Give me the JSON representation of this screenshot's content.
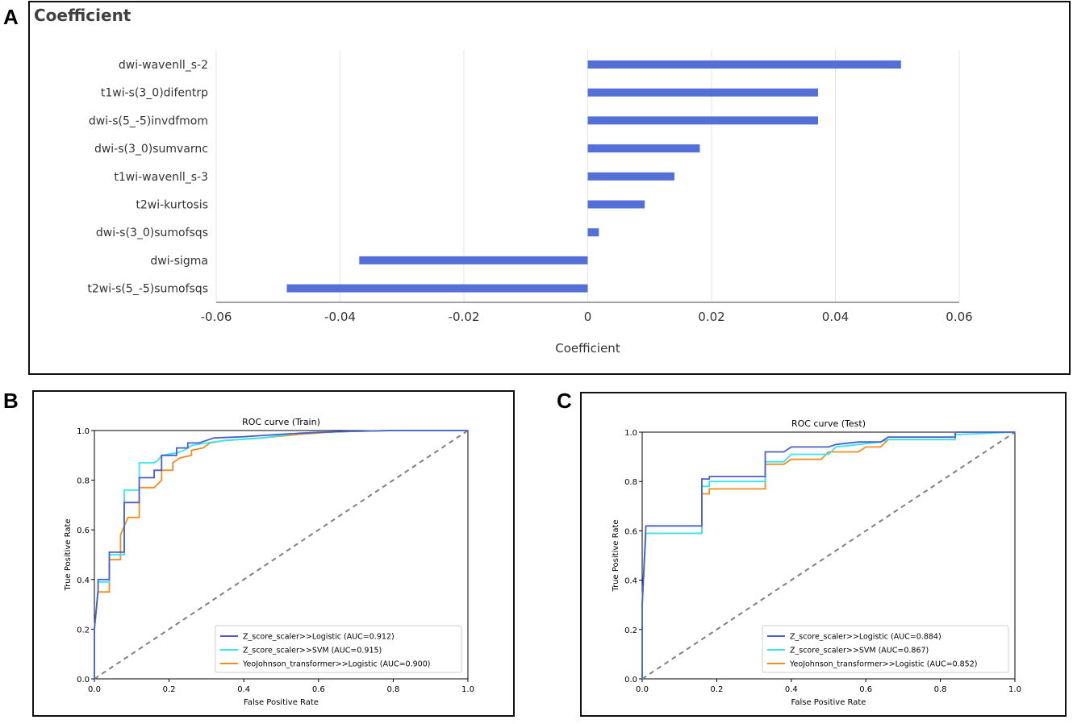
{
  "panels": {
    "a": "A",
    "b": "B",
    "c": "C"
  },
  "coef_chart": {
    "type": "bar",
    "orientation": "horizontal",
    "title": "Coefficient",
    "xlabel": "Coefficient",
    "xlim": [
      -0.06,
      0.06
    ],
    "xticks": [
      -0.06,
      -0.04,
      -0.02,
      0,
      0.02,
      0.04,
      0.06
    ],
    "xtick_labels": [
      "-0.06",
      "-0.04",
      "-0.02",
      "0",
      "0.02",
      "0.04",
      "0.06"
    ],
    "bar_color": "#5470d8",
    "categories": [
      "dwi-wavenll_s-2",
      "t1wi-s(3_0)difentrp",
      "dwi-s(5_-5)invdfmom",
      "dwi-s(3_0)sumvarnc",
      "t1wi-wavenll_s-3",
      "t2wi-kurtosis",
      "dwi-s(3_0)sumofsqs",
      "dwi-sigma",
      "t2wi-s(5_-5)sumofsqs"
    ],
    "values": [
      0.0506,
      0.0372,
      0.0372,
      0.0181,
      0.014,
      0.0092,
      0.0018,
      -0.0369,
      -0.0486
    ]
  },
  "roc_train": {
    "type": "line",
    "title": "ROC curve (Train)",
    "xlabel": "False Positive Rate",
    "ylabel": "True Positive Rate",
    "xlim": [
      0,
      1
    ],
    "ylim": [
      0,
      1
    ],
    "xticks": [
      "0.0",
      "0.2",
      "0.4",
      "0.6",
      "0.8",
      "1.0"
    ],
    "yticks": [
      "0.0",
      "0.2",
      "0.4",
      "0.6",
      "0.8",
      "1.0"
    ],
    "legend_position": "lower-right",
    "series": [
      {
        "name": "Z_score_scaler>>Logistic (AUC=0.912)",
        "color": "#4c5fc7",
        "points": [
          [
            0,
            0
          ],
          [
            0,
            0.2
          ],
          [
            0.01,
            0.36
          ],
          [
            0.01,
            0.4
          ],
          [
            0.04,
            0.4
          ],
          [
            0.04,
            0.51
          ],
          [
            0.08,
            0.51
          ],
          [
            0.08,
            0.71
          ],
          [
            0.12,
            0.71
          ],
          [
            0.12,
            0.81
          ],
          [
            0.16,
            0.81
          ],
          [
            0.16,
            0.84
          ],
          [
            0.18,
            0.84
          ],
          [
            0.18,
            0.9
          ],
          [
            0.22,
            0.9
          ],
          [
            0.22,
            0.93
          ],
          [
            0.25,
            0.93
          ],
          [
            0.25,
            0.95
          ],
          [
            0.28,
            0.95
          ],
          [
            0.3,
            0.96
          ],
          [
            0.32,
            0.97
          ],
          [
            0.4,
            0.975
          ],
          [
            0.5,
            0.985
          ],
          [
            0.6,
            0.993
          ],
          [
            0.7,
            0.997
          ],
          [
            0.8,
            1
          ],
          [
            1,
            1
          ]
        ]
      },
      {
        "name": "Z_score_scaler>>SVM (AUC=0.915)",
        "color": "#33e6f2",
        "points": [
          [
            0,
            0
          ],
          [
            0,
            0.2
          ],
          [
            0.01,
            0.35
          ],
          [
            0.01,
            0.39
          ],
          [
            0.04,
            0.39
          ],
          [
            0.04,
            0.5
          ],
          [
            0.08,
            0.5
          ],
          [
            0.08,
            0.76
          ],
          [
            0.12,
            0.76
          ],
          [
            0.12,
            0.87
          ],
          [
            0.16,
            0.87
          ],
          [
            0.17,
            0.88
          ],
          [
            0.18,
            0.9
          ],
          [
            0.22,
            0.91
          ],
          [
            0.24,
            0.92
          ],
          [
            0.26,
            0.94
          ],
          [
            0.3,
            0.95
          ],
          [
            0.35,
            0.96
          ],
          [
            0.45,
            0.97
          ],
          [
            0.55,
            0.99
          ],
          [
            0.65,
            0.995
          ],
          [
            0.8,
            1
          ],
          [
            1,
            1
          ]
        ]
      },
      {
        "name": "YeoJohnson_transformer>>Logistic (AUC=0.900)",
        "color": "#f28c1e",
        "points": [
          [
            0,
            0
          ],
          [
            0,
            0.2
          ],
          [
            0.01,
            0.35
          ],
          [
            0.04,
            0.35
          ],
          [
            0.04,
            0.48
          ],
          [
            0.07,
            0.48
          ],
          [
            0.07,
            0.58
          ],
          [
            0.09,
            0.65
          ],
          [
            0.12,
            0.65
          ],
          [
            0.12,
            0.77
          ],
          [
            0.16,
            0.77
          ],
          [
            0.18,
            0.8
          ],
          [
            0.18,
            0.84
          ],
          [
            0.21,
            0.84
          ],
          [
            0.21,
            0.87
          ],
          [
            0.23,
            0.89
          ],
          [
            0.26,
            0.9
          ],
          [
            0.26,
            0.92
          ],
          [
            0.29,
            0.93
          ],
          [
            0.31,
            0.95
          ],
          [
            0.35,
            0.96
          ],
          [
            0.45,
            0.97
          ],
          [
            0.55,
            0.985
          ],
          [
            0.65,
            0.995
          ],
          [
            0.8,
            1
          ],
          [
            1,
            1
          ]
        ]
      }
    ]
  },
  "roc_test": {
    "type": "line",
    "title": "ROC curve (Test)",
    "xlabel": "False Positive Rate",
    "ylabel": "True Positive Rate",
    "xlim": [
      0,
      1
    ],
    "ylim": [
      0,
      1
    ],
    "xticks": [
      "0.0",
      "0.2",
      "0.4",
      "0.6",
      "0.8",
      "1.0"
    ],
    "yticks": [
      "0.0",
      "0.2",
      "0.4",
      "0.6",
      "0.8",
      "1.0"
    ],
    "legend_position": "lower-right",
    "series": [
      {
        "name": "Z_score_scaler>>Logistic (AUC=0.884)",
        "color": "#4c5fc7",
        "points": [
          [
            0,
            0
          ],
          [
            0,
            0.3
          ],
          [
            0.01,
            0.62
          ],
          [
            0.16,
            0.62
          ],
          [
            0.16,
            0.81
          ],
          [
            0.18,
            0.81
          ],
          [
            0.18,
            0.82
          ],
          [
            0.33,
            0.82
          ],
          [
            0.33,
            0.92
          ],
          [
            0.38,
            0.92
          ],
          [
            0.4,
            0.94
          ],
          [
            0.5,
            0.94
          ],
          [
            0.52,
            0.95
          ],
          [
            0.58,
            0.96
          ],
          [
            0.64,
            0.96
          ],
          [
            0.66,
            0.98
          ],
          [
            0.84,
            0.98
          ],
          [
            0.84,
            1
          ],
          [
            1,
            1
          ]
        ]
      },
      {
        "name": "Z_score_scaler>>SVM (AUC=0.867)",
        "color": "#33e6f2",
        "points": [
          [
            0,
            0
          ],
          [
            0,
            0.3
          ],
          [
            0.01,
            0.59
          ],
          [
            0.16,
            0.59
          ],
          [
            0.16,
            0.78
          ],
          [
            0.18,
            0.78
          ],
          [
            0.18,
            0.8
          ],
          [
            0.33,
            0.8
          ],
          [
            0.33,
            0.88
          ],
          [
            0.38,
            0.88
          ],
          [
            0.4,
            0.91
          ],
          [
            0.5,
            0.91
          ],
          [
            0.52,
            0.94
          ],
          [
            0.58,
            0.95
          ],
          [
            0.64,
            0.96
          ],
          [
            0.66,
            0.97
          ],
          [
            0.84,
            0.97
          ],
          [
            0.84,
            0.99
          ],
          [
            1,
            1
          ]
        ]
      },
      {
        "name": "YeoJohnson_transformer>>Logistic (AUC=0.852)",
        "color": "#f28c1e",
        "points": [
          [
            0,
            0
          ],
          [
            0,
            0.3
          ],
          [
            0.01,
            0.59
          ],
          [
            0.16,
            0.59
          ],
          [
            0.16,
            0.75
          ],
          [
            0.18,
            0.75
          ],
          [
            0.18,
            0.77
          ],
          [
            0.33,
            0.77
          ],
          [
            0.33,
            0.87
          ],
          [
            0.38,
            0.87
          ],
          [
            0.4,
            0.89
          ],
          [
            0.48,
            0.89
          ],
          [
            0.5,
            0.92
          ],
          [
            0.58,
            0.92
          ],
          [
            0.6,
            0.94
          ],
          [
            0.64,
            0.94
          ],
          [
            0.66,
            0.97
          ],
          [
            0.84,
            0.97
          ],
          [
            0.84,
            1
          ],
          [
            1,
            1
          ]
        ]
      }
    ]
  },
  "chart_data": [
    {
      "type": "bar",
      "title": "Coefficient",
      "xlabel": "Coefficient",
      "categories": [
        "dwi-wavenll_s-2",
        "t1wi-s(3_0)difentrp",
        "dwi-s(5_-5)invdfmom",
        "dwi-s(3_0)sumvarnc",
        "t1wi-wavenll_s-3",
        "t2wi-kurtosis",
        "dwi-s(3_0)sumofsqs",
        "dwi-sigma",
        "t2wi-s(5_-5)sumofsqs"
      ],
      "values": [
        0.0506,
        0.0372,
        0.0372,
        0.0181,
        0.014,
        0.0092,
        0.0018,
        -0.0369,
        -0.0486
      ],
      "xlim": [
        -0.06,
        0.06
      ]
    },
    {
      "type": "line",
      "title": "ROC curve (Train)",
      "xlabel": "False Positive Rate",
      "ylabel": "True Positive Rate",
      "legend": [
        "Z_score_scaler>>Logistic (AUC=0.912)",
        "Z_score_scaler>>SVM (AUC=0.915)",
        "YeoJohnson_transformer>>Logistic (AUC=0.900)"
      ],
      "xlim": [
        0,
        1
      ],
      "ylim": [
        0,
        1
      ]
    },
    {
      "type": "line",
      "title": "ROC curve (Test)",
      "xlabel": "False Positive Rate",
      "ylabel": "True Positive Rate",
      "legend": [
        "Z_score_scaler>>Logistic (AUC=0.884)",
        "Z_score_scaler>>SVM (AUC=0.867)",
        "YeoJohnson_transformer>>Logistic (AUC=0.852)"
      ],
      "xlim": [
        0,
        1
      ],
      "ylim": [
        0,
        1
      ]
    }
  ]
}
